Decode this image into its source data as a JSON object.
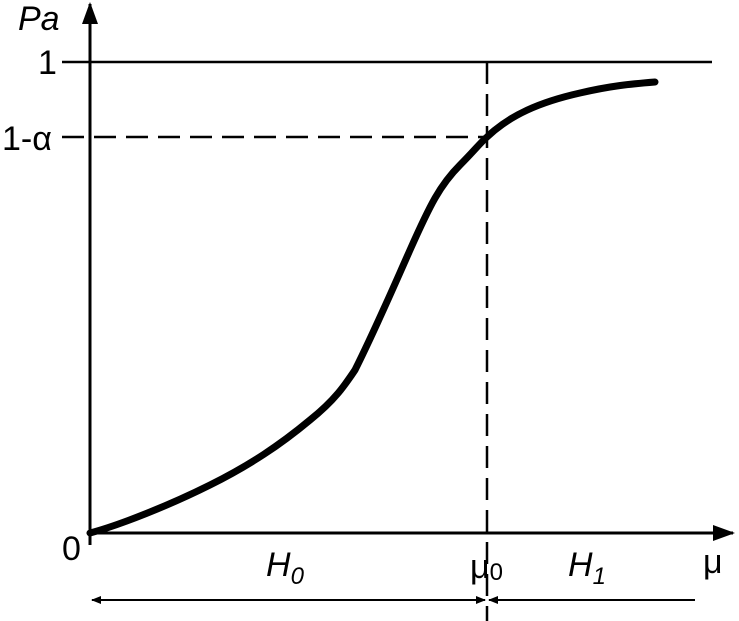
{
  "axes": {
    "y_label": "Pa",
    "x_label": "μ"
  },
  "y_labels": {
    "one": "1",
    "one_minus_alpha": "1-α",
    "zero": "0"
  },
  "x_labels": {
    "mu0": {
      "main": "μ",
      "sub": "0"
    }
  },
  "regions": {
    "h0": {
      "main": "H",
      "sub": "0"
    },
    "h1": {
      "main": "H",
      "sub": "1"
    }
  }
}
